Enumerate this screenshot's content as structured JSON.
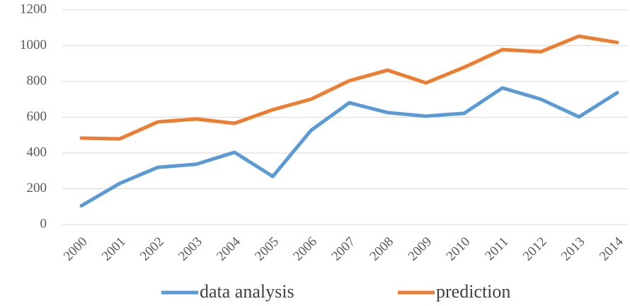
{
  "chart_data": {
    "type": "line",
    "categories": [
      "2000",
      "2001",
      "2002",
      "2003",
      "2004",
      "2005",
      "2006",
      "2007",
      "2008",
      "2009",
      "2010",
      "2011",
      "2012",
      "2013",
      "2014"
    ],
    "series": [
      {
        "name": "data analysis",
        "color": "#5b9bd5",
        "values": [
          105,
          230,
          320,
          337,
          404,
          269,
          527,
          681,
          626,
          606,
          622,
          764,
          701,
          602,
          737
        ]
      },
      {
        "name": "prediction",
        "color": "#ed7d31",
        "values": [
          483,
          479,
          574,
          590,
          566,
          642,
          701,
          804,
          863,
          792,
          879,
          978,
          966,
          1053,
          1018
        ]
      }
    ],
    "ylim": [
      0,
      1200
    ],
    "yticks": [
      0,
      200,
      400,
      600,
      800,
      1000,
      1200
    ],
    "grid": true,
    "legend": "bottom"
  }
}
